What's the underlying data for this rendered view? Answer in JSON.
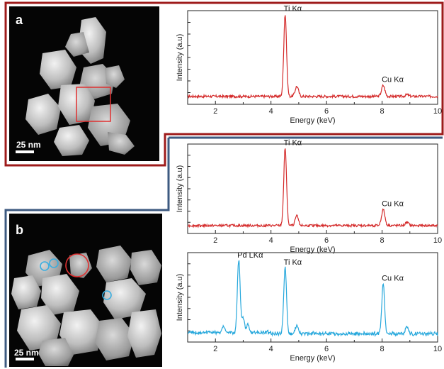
{
  "panels": [
    {
      "letter": "a",
      "scale_bar": "25 nm",
      "border_color": "#9e1b1b"
    },
    {
      "letter": "b",
      "scale_bar": "25 nm",
      "border_color": "#3d5a80"
    }
  ],
  "colors": {
    "red_spectrum": "#d42a2a",
    "blue_spectrum": "#27a8dc",
    "marker_red": "#e03030",
    "marker_blue": "#3aaee0"
  },
  "chart_data": [
    {
      "type": "line",
      "panel": "a",
      "xlabel": "Energy (keV)",
      "ylabel": "Intensity (a.u)",
      "xlim": [
        1,
        10
      ],
      "xticks": [
        2,
        4,
        6,
        8,
        10
      ],
      "color": "#d42a2a",
      "peaks": [
        {
          "x": 4.51,
          "height": 0.98,
          "width": 0.05
        },
        {
          "x": 4.93,
          "height": 0.12,
          "width": 0.06
        },
        {
          "x": 8.04,
          "height": 0.13,
          "width": 0.06
        },
        {
          "x": 8.9,
          "height": 0.02,
          "width": 0.06
        }
      ],
      "annotations": [
        {
          "text": "Ti Kα",
          "x": 4.51
        },
        {
          "text": "Cu Kα",
          "x": 8.04
        }
      ]
    },
    {
      "type": "line",
      "panel": "b",
      "xlabel": "Energy (keV)",
      "ylabel": "Intensity (a.u)",
      "xlim": [
        1,
        10
      ],
      "xticks": [
        2,
        4,
        6,
        8,
        10
      ],
      "color": "#d42a2a",
      "peaks": [
        {
          "x": 4.51,
          "height": 0.97,
          "width": 0.05
        },
        {
          "x": 4.93,
          "height": 0.12,
          "width": 0.06
        },
        {
          "x": 8.04,
          "height": 0.2,
          "width": 0.06
        },
        {
          "x": 8.9,
          "height": 0.04,
          "width": 0.06
        }
      ],
      "annotations": [
        {
          "text": "Ti Kα",
          "x": 4.51
        },
        {
          "text": "Cu Kα",
          "x": 8.04
        }
      ]
    },
    {
      "type": "line",
      "panel": "b",
      "xlabel": "Energy (keV)",
      "ylabel": "Intensity (a.u)",
      "xlim": [
        1,
        10
      ],
      "xticks": [
        2,
        4,
        6,
        8,
        10
      ],
      "color": "#27a8dc",
      "peaks": [
        {
          "x": 2.84,
          "height": 0.92,
          "width": 0.05
        },
        {
          "x": 3.0,
          "height": 0.18,
          "width": 0.05
        },
        {
          "x": 3.17,
          "height": 0.1,
          "width": 0.05
        },
        {
          "x": 2.29,
          "height": 0.07,
          "width": 0.06
        },
        {
          "x": 4.51,
          "height": 0.83,
          "width": 0.05
        },
        {
          "x": 4.93,
          "height": 0.1,
          "width": 0.06
        },
        {
          "x": 8.04,
          "height": 0.63,
          "width": 0.05
        },
        {
          "x": 8.9,
          "height": 0.08,
          "width": 0.06
        }
      ],
      "annotations": [
        {
          "text": "Pd LKα",
          "x": 2.84
        },
        {
          "text": "Ti Kα",
          "x": 4.51
        },
        {
          "text": "Cu Kα",
          "x": 8.04
        }
      ]
    }
  ]
}
